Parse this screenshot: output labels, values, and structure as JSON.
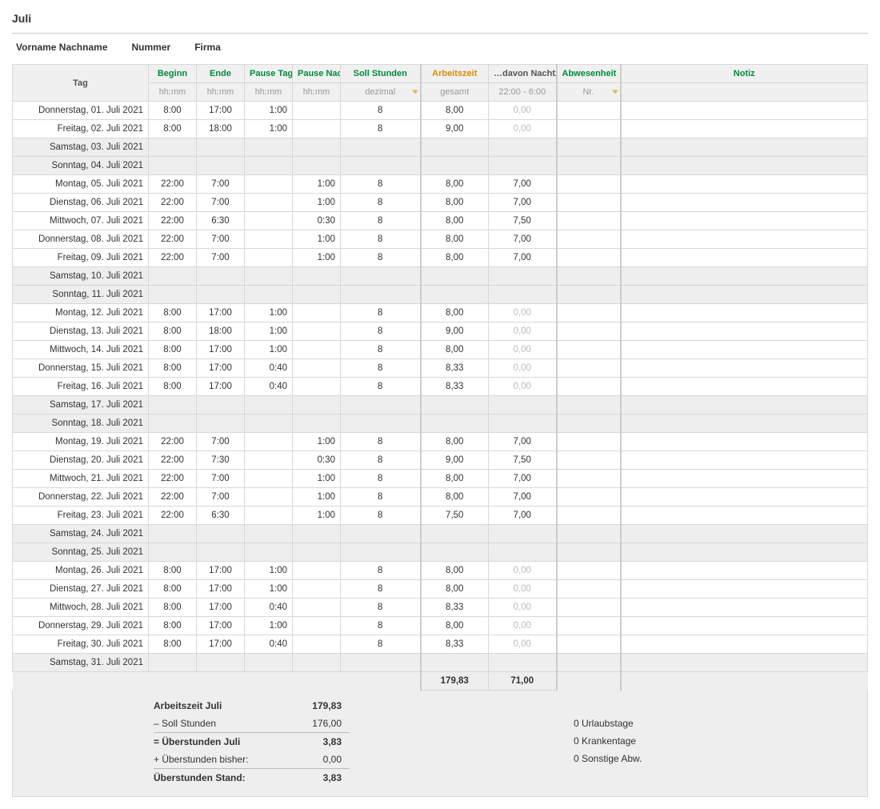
{
  "title": "Juli",
  "info": {
    "name_label": "Vorname Nachname",
    "number_label": "Nummer",
    "company_label": "Firma"
  },
  "headers": {
    "tag": "Tag",
    "beginn": "Beginn",
    "ende": "Ende",
    "pause_tag": "Pause Tag",
    "pause_nacht": "Pause Nacht",
    "soll": "Soll Stunden",
    "arbeit": "Arbeitszeit",
    "nacht": "…davon Nachtzeit",
    "abw": "Abwesenheit",
    "notiz": "Notiz"
  },
  "subheaders": {
    "hhmm": "hh:mm",
    "dezimal": "dezimal",
    "gesamt": "gesamt",
    "nacht_range": "22:00 - 6:00",
    "nr": "Nr."
  },
  "rows": [
    {
      "tag": "Donnerstag, 01. Juli 2021",
      "beg": "8:00",
      "end": "17:00",
      "ptag": "1:00",
      "pnacht": "",
      "soll": "8",
      "arb": "8,00",
      "nacht": "0,00",
      "nacht_muted": true,
      "weekend": false
    },
    {
      "tag": "Freitag, 02. Juli 2021",
      "beg": "8:00",
      "end": "18:00",
      "ptag": "1:00",
      "pnacht": "",
      "soll": "8",
      "arb": "9,00",
      "nacht": "0,00",
      "nacht_muted": true,
      "weekend": false
    },
    {
      "tag": "Samstag, 03. Juli 2021",
      "beg": "",
      "end": "",
      "ptag": "",
      "pnacht": "",
      "soll": "",
      "arb": "",
      "nacht": "",
      "nacht_muted": false,
      "weekend": true
    },
    {
      "tag": "Sonntag, 04. Juli 2021",
      "beg": "",
      "end": "",
      "ptag": "",
      "pnacht": "",
      "soll": "",
      "arb": "",
      "nacht": "",
      "nacht_muted": false,
      "weekend": true
    },
    {
      "tag": "Montag, 05. Juli 2021",
      "beg": "22:00",
      "end": "7:00",
      "ptag": "",
      "pnacht": "1:00",
      "soll": "8",
      "arb": "8,00",
      "nacht": "7,00",
      "nacht_muted": false,
      "weekend": false
    },
    {
      "tag": "Dienstag, 06. Juli 2021",
      "beg": "22:00",
      "end": "7:00",
      "ptag": "",
      "pnacht": "1:00",
      "soll": "8",
      "arb": "8,00",
      "nacht": "7,00",
      "nacht_muted": false,
      "weekend": false
    },
    {
      "tag": "Mittwoch, 07. Juli 2021",
      "beg": "22:00",
      "end": "6:30",
      "ptag": "",
      "pnacht": "0:30",
      "soll": "8",
      "arb": "8,00",
      "nacht": "7,50",
      "nacht_muted": false,
      "weekend": false
    },
    {
      "tag": "Donnerstag, 08. Juli 2021",
      "beg": "22:00",
      "end": "7:00",
      "ptag": "",
      "pnacht": "1:00",
      "soll": "8",
      "arb": "8,00",
      "nacht": "7,00",
      "nacht_muted": false,
      "weekend": false
    },
    {
      "tag": "Freitag, 09. Juli 2021",
      "beg": "22:00",
      "end": "7:00",
      "ptag": "",
      "pnacht": "1:00",
      "soll": "8",
      "arb": "8,00",
      "nacht": "7,00",
      "nacht_muted": false,
      "weekend": false
    },
    {
      "tag": "Samstag, 10. Juli 2021",
      "beg": "",
      "end": "",
      "ptag": "",
      "pnacht": "",
      "soll": "",
      "arb": "",
      "nacht": "",
      "nacht_muted": false,
      "weekend": true
    },
    {
      "tag": "Sonntag, 11. Juli 2021",
      "beg": "",
      "end": "",
      "ptag": "",
      "pnacht": "",
      "soll": "",
      "arb": "",
      "nacht": "",
      "nacht_muted": false,
      "weekend": true
    },
    {
      "tag": "Montag, 12. Juli 2021",
      "beg": "8:00",
      "end": "17:00",
      "ptag": "1:00",
      "pnacht": "",
      "soll": "8",
      "arb": "8,00",
      "nacht": "0,00",
      "nacht_muted": true,
      "weekend": false
    },
    {
      "tag": "Dienstag, 13. Juli 2021",
      "beg": "8:00",
      "end": "18:00",
      "ptag": "1:00",
      "pnacht": "",
      "soll": "8",
      "arb": "9,00",
      "nacht": "0,00",
      "nacht_muted": true,
      "weekend": false
    },
    {
      "tag": "Mittwoch, 14. Juli 2021",
      "beg": "8:00",
      "end": "17:00",
      "ptag": "1:00",
      "pnacht": "",
      "soll": "8",
      "arb": "8,00",
      "nacht": "0,00",
      "nacht_muted": true,
      "weekend": false
    },
    {
      "tag": "Donnerstag, 15. Juli 2021",
      "beg": "8:00",
      "end": "17:00",
      "ptag": "0:40",
      "pnacht": "",
      "soll": "8",
      "arb": "8,33",
      "nacht": "0,00",
      "nacht_muted": true,
      "weekend": false
    },
    {
      "tag": "Freitag, 16. Juli 2021",
      "beg": "8:00",
      "end": "17:00",
      "ptag": "0:40",
      "pnacht": "",
      "soll": "8",
      "arb": "8,33",
      "nacht": "0,00",
      "nacht_muted": true,
      "weekend": false
    },
    {
      "tag": "Samstag, 17. Juli 2021",
      "beg": "",
      "end": "",
      "ptag": "",
      "pnacht": "",
      "soll": "",
      "arb": "",
      "nacht": "",
      "nacht_muted": false,
      "weekend": true
    },
    {
      "tag": "Sonntag, 18. Juli 2021",
      "beg": "",
      "end": "",
      "ptag": "",
      "pnacht": "",
      "soll": "",
      "arb": "",
      "nacht": "",
      "nacht_muted": false,
      "weekend": true
    },
    {
      "tag": "Montag, 19. Juli 2021",
      "beg": "22:00",
      "end": "7:00",
      "ptag": "",
      "pnacht": "1:00",
      "soll": "8",
      "arb": "8,00",
      "nacht": "7,00",
      "nacht_muted": false,
      "weekend": false
    },
    {
      "tag": "Dienstag, 20. Juli 2021",
      "beg": "22:00",
      "end": "7:30",
      "ptag": "",
      "pnacht": "0:30",
      "soll": "8",
      "arb": "9,00",
      "nacht": "7,50",
      "nacht_muted": false,
      "weekend": false
    },
    {
      "tag": "Mittwoch, 21. Juli 2021",
      "beg": "22:00",
      "end": "7:00",
      "ptag": "",
      "pnacht": "1:00",
      "soll": "8",
      "arb": "8,00",
      "nacht": "7,00",
      "nacht_muted": false,
      "weekend": false
    },
    {
      "tag": "Donnerstag, 22. Juli 2021",
      "beg": "22:00",
      "end": "7:00",
      "ptag": "",
      "pnacht": "1:00",
      "soll": "8",
      "arb": "8,00",
      "nacht": "7,00",
      "nacht_muted": false,
      "weekend": false
    },
    {
      "tag": "Freitag, 23. Juli 2021",
      "beg": "22:00",
      "end": "6:30",
      "ptag": "",
      "pnacht": "1:00",
      "soll": "8",
      "arb": "7,50",
      "nacht": "7,00",
      "nacht_muted": false,
      "weekend": false
    },
    {
      "tag": "Samstag, 24. Juli 2021",
      "beg": "",
      "end": "",
      "ptag": "",
      "pnacht": "",
      "soll": "",
      "arb": "",
      "nacht": "",
      "nacht_muted": false,
      "weekend": true
    },
    {
      "tag": "Sonntag, 25. Juli 2021",
      "beg": "",
      "end": "",
      "ptag": "",
      "pnacht": "",
      "soll": "",
      "arb": "",
      "nacht": "",
      "nacht_muted": false,
      "weekend": true
    },
    {
      "tag": "Montag, 26. Juli 2021",
      "beg": "8:00",
      "end": "17:00",
      "ptag": "1:00",
      "pnacht": "",
      "soll": "8",
      "arb": "8,00",
      "nacht": "0,00",
      "nacht_muted": true,
      "weekend": false
    },
    {
      "tag": "Dienstag, 27. Juli 2021",
      "beg": "8:00",
      "end": "17:00",
      "ptag": "1:00",
      "pnacht": "",
      "soll": "8",
      "arb": "8,00",
      "nacht": "0,00",
      "nacht_muted": true,
      "weekend": false
    },
    {
      "tag": "Mittwoch, 28. Juli 2021",
      "beg": "8:00",
      "end": "17:00",
      "ptag": "0:40",
      "pnacht": "",
      "soll": "8",
      "arb": "8,33",
      "nacht": "0,00",
      "nacht_muted": true,
      "weekend": false
    },
    {
      "tag": "Donnerstag, 29. Juli 2021",
      "beg": "8:00",
      "end": "17:00",
      "ptag": "1:00",
      "pnacht": "",
      "soll": "8",
      "arb": "8,00",
      "nacht": "0,00",
      "nacht_muted": true,
      "weekend": false
    },
    {
      "tag": "Freitag, 30. Juli 2021",
      "beg": "8:00",
      "end": "17:00",
      "ptag": "0:40",
      "pnacht": "",
      "soll": "8",
      "arb": "8,33",
      "nacht": "0,00",
      "nacht_muted": true,
      "weekend": false
    },
    {
      "tag": "Samstag, 31. Juli 2021",
      "beg": "",
      "end": "",
      "ptag": "",
      "pnacht": "",
      "soll": "",
      "arb": "",
      "nacht": "",
      "nacht_muted": false,
      "weekend": true
    }
  ],
  "totals": {
    "arb": "179,83",
    "nacht": "71,00"
  },
  "summary": {
    "l1": "Arbeitszeit Juli",
    "v1": "179,83",
    "l2": "– Soll Stunden",
    "v2": "176,00",
    "l3": "= Überstunden Juli",
    "v3": "3,83",
    "l4": "+ Überstunden bisher:",
    "v4": "0,00",
    "l5": "Überstunden Stand:",
    "v5": "3,83",
    "r1": "0 Urlaubstage",
    "r2": "0 Krankentage",
    "r3": "0 Sonstige Abw."
  }
}
